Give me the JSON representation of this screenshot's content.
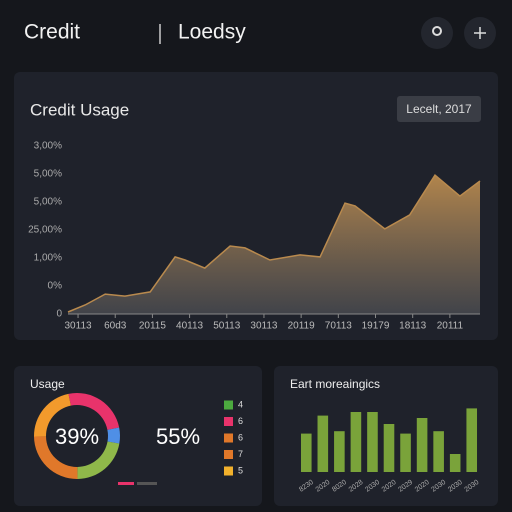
{
  "header": {
    "brand": "Credit",
    "section": "Loedsy"
  },
  "usage_chart": {
    "type": "area",
    "title": "Credit Usage",
    "badge": "Lecelt, 2017",
    "color": "#b98a4e",
    "categories": [
      "30113",
      "60d3",
      "20115",
      "40113",
      "50113",
      "30113",
      "20119",
      "70113",
      "19179",
      "18113",
      "20111"
    ],
    "x": [
      -0.27,
      0.19,
      0.73,
      1.26,
      1.94,
      2.61,
      2.88,
      3.41,
      4.09,
      4.49,
      5.16,
      5.97,
      6.51,
      7.18,
      7.45,
      8.25,
      8.92,
      9.6,
      10.27,
      10.81
    ],
    "values": [
      0.07,
      0.32,
      0.71,
      0.64,
      0.79,
      2.04,
      1.93,
      1.64,
      2.43,
      2.36,
      1.93,
      2.11,
      2.04,
      3.96,
      3.86,
      3.04,
      3.54,
      4.96,
      4.21,
      4.75
    ],
    "xlim": [
      -0.27,
      10.81
    ],
    "ylim": [
      0,
      6
    ],
    "yticks": [
      {
        "value": 0,
        "label": "0"
      },
      {
        "value": 1,
        "label": "0%"
      },
      {
        "value": 2,
        "label": "1,00%"
      },
      {
        "value": 3,
        "label": "25,00%"
      },
      {
        "value": 4,
        "label": "5,00%"
      },
      {
        "value": 5,
        "label": "5,00%"
      },
      {
        "value": 6,
        "label": "3,00%"
      }
    ]
  },
  "donut": {
    "type": "pie",
    "title": "Usage",
    "center_label": "39%",
    "side_label": "55%",
    "values": [
      25,
      6,
      22,
      25,
      22
    ],
    "colors": [
      "#e8336b",
      "#4f8fe6",
      "#8fb84a",
      "#e0782a",
      "#f29a2c"
    ],
    "legend": [
      {
        "label": "4",
        "color": "#4caa3f"
      },
      {
        "label": "6",
        "color": "#e8336b"
      },
      {
        "label": "6",
        "color": "#e0782a"
      },
      {
        "label": "7",
        "color": "#e0782a"
      },
      {
        "label": "5",
        "color": "#f2b12c"
      }
    ]
  },
  "bars": {
    "type": "bar",
    "title": "Eart moreaingics",
    "categories": [
      "8230",
      "2020",
      "8020",
      "2028",
      "2030",
      "2020",
      "2029",
      "2020",
      "2030",
      "2030",
      "2030"
    ],
    "values": [
      32,
      47,
      34,
      50,
      50,
      40,
      32,
      45,
      34,
      15,
      53
    ],
    "color": "#7aa33a",
    "ylim": [
      0,
      60
    ]
  }
}
